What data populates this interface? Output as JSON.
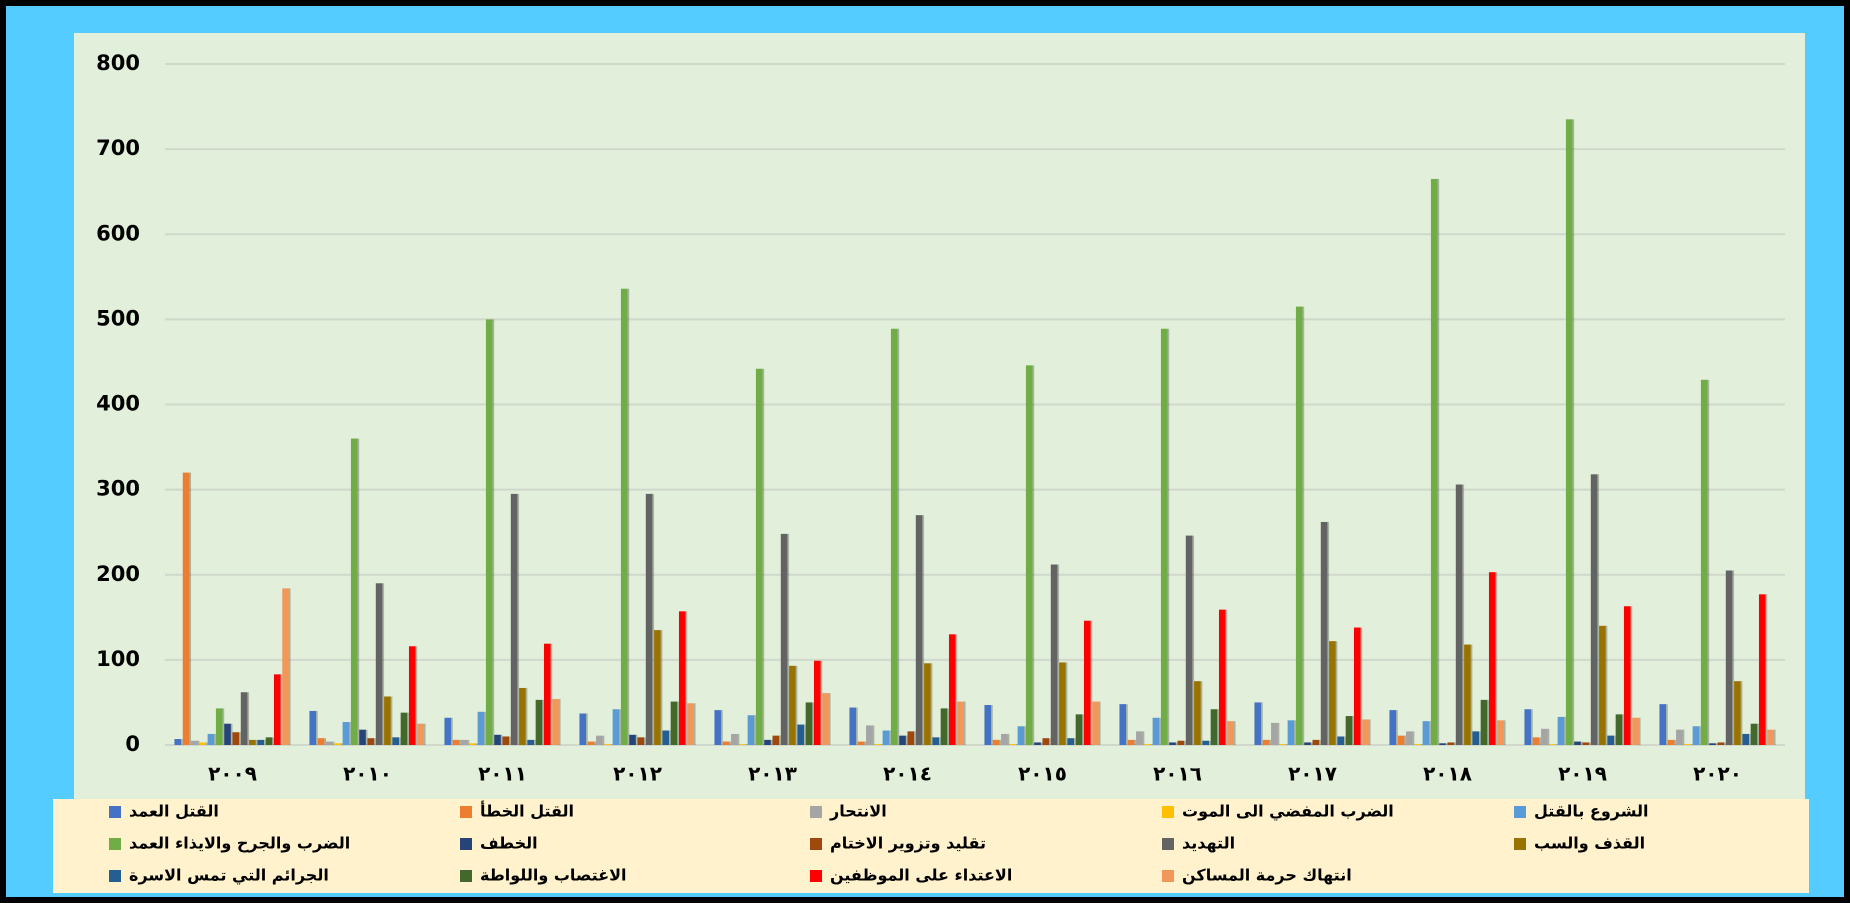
{
  "chart_data": {
    "type": "bar",
    "categories": [
      "٢٠٠٩",
      "٢٠١٠",
      "٢٠١١",
      "٢٠١٢",
      "٢٠١٣",
      "٢٠١٤",
      "٢٠١٥",
      "٢٠١٦",
      "٢٠١٧",
      "٢٠١٨",
      "٢٠١٩",
      "٢٠٢٠"
    ],
    "series": [
      {
        "name": "القتل العمد",
        "color": "#4472c4",
        "values": [
          7,
          40,
          32,
          37,
          41,
          44,
          47,
          48,
          50,
          41,
          42,
          48
        ]
      },
      {
        "name": "القتل الخطأ",
        "color": "#ed7d31",
        "values": [
          320,
          8,
          6,
          4,
          4,
          4,
          6,
          6,
          6,
          11,
          9,
          6
        ]
      },
      {
        "name": "الانتحار",
        "color": "#a5a5a5",
        "values": [
          5,
          4,
          6,
          11,
          13,
          23,
          13,
          16,
          26,
          16,
          19,
          18
        ]
      },
      {
        "name": "الضرب المفضي الى الموت",
        "color": "#ffc000",
        "values": [
          3,
          2,
          2,
          1,
          1,
          1,
          1,
          1,
          1,
          1,
          1,
          1
        ]
      },
      {
        "name": "الشروع بالقتل",
        "color": "#5b9bd5",
        "values": [
          13,
          27,
          39,
          42,
          35,
          17,
          22,
          32,
          29,
          28,
          33,
          22
        ]
      },
      {
        "name": "الضرب والجرح والايذاء العمد",
        "color": "#70ad47",
        "values": [
          43,
          360,
          500,
          536,
          442,
          489,
          446,
          489,
          515,
          665,
          735,
          429
        ]
      },
      {
        "name": "الخطف",
        "color": "#264478",
        "values": [
          25,
          18,
          12,
          12,
          6,
          11,
          3,
          3,
          3,
          2,
          4,
          2
        ]
      },
      {
        "name": "تقليد وتزوير الاختام",
        "color": "#9e480e",
        "values": [
          15,
          8,
          10,
          9,
          11,
          16,
          8,
          5,
          6,
          3,
          3,
          3
        ]
      },
      {
        "name": "التهديد",
        "color": "#636363",
        "values": [
          62,
          190,
          295,
          295,
          248,
          270,
          212,
          246,
          262,
          306,
          318,
          205
        ]
      },
      {
        "name": "القذف والسب",
        "color": "#997300",
        "values": [
          6,
          57,
          67,
          135,
          93,
          96,
          97,
          75,
          122,
          118,
          140,
          75
        ]
      },
      {
        "name": "الجرائم التي تمس الاسرة",
        "color": "#255e91",
        "values": [
          6,
          9,
          6,
          17,
          24,
          9,
          8,
          5,
          10,
          16,
          11,
          13
        ]
      },
      {
        "name": "الاغتصاب واللواطة",
        "color": "#43682b",
        "values": [
          9,
          38,
          53,
          51,
          50,
          43,
          36,
          42,
          34,
          53,
          36,
          25
        ]
      },
      {
        "name": "الاعتداء على الموظفين",
        "color": "#ff0000",
        "values": [
          83,
          116,
          119,
          157,
          99,
          130,
          146,
          159,
          138,
          203,
          163,
          177
        ]
      },
      {
        "name": "انتهاك حرمة المساكن",
        "color": "#f1975a",
        "values": [
          184,
          25,
          54,
          49,
          61,
          51,
          51,
          28,
          30,
          29,
          32,
          18
        ]
      }
    ],
    "ylim": [
      0,
      800
    ],
    "yticks": [
      0,
      100,
      200,
      300,
      400,
      500,
      600,
      700,
      800
    ],
    "grid": true,
    "legend": "bottom"
  }
}
